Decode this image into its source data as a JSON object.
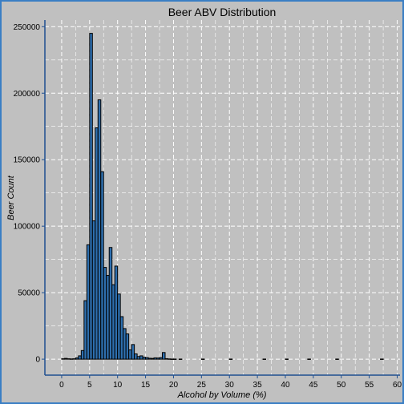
{
  "chart_data": {
    "type": "histogram",
    "title": "Beer ABV Distribution",
    "xlabel": "Alcohol by Volume (%)",
    "ylabel": "Beer Count",
    "xlim": [
      -3,
      60.5
    ],
    "ylim": [
      -12000,
      255000
    ],
    "xticks": [
      0,
      5,
      10,
      15,
      20,
      25,
      30,
      35,
      40,
      45,
      50,
      55,
      60
    ],
    "yticks": [
      0,
      50000,
      100000,
      150000,
      200000,
      250000
    ],
    "ytick_labels": [
      "0",
      "50000",
      "100000",
      "150000",
      "200000",
      "250000"
    ],
    "bin_width": 0.5,
    "bin_start": 0,
    "bins": [
      {
        "x": 0.0,
        "count": 300
      },
      {
        "x": 0.5,
        "count": 600
      },
      {
        "x": 1.0,
        "count": 300
      },
      {
        "x": 1.5,
        "count": 200
      },
      {
        "x": 2.0,
        "count": 300
      },
      {
        "x": 2.5,
        "count": 1000
      },
      {
        "x": 3.0,
        "count": 2500
      },
      {
        "x": 3.5,
        "count": 6500
      },
      {
        "x": 4.0,
        "count": 44000
      },
      {
        "x": 4.5,
        "count": 86000
      },
      {
        "x": 5.0,
        "count": 245000
      },
      {
        "x": 5.5,
        "count": 104000
      },
      {
        "x": 6.0,
        "count": 174000
      },
      {
        "x": 6.5,
        "count": 195000
      },
      {
        "x": 7.0,
        "count": 141000
      },
      {
        "x": 7.5,
        "count": 69000
      },
      {
        "x": 8.0,
        "count": 63000
      },
      {
        "x": 8.5,
        "count": 84000
      },
      {
        "x": 9.0,
        "count": 56000
      },
      {
        "x": 9.5,
        "count": 70000
      },
      {
        "x": 10.0,
        "count": 49000
      },
      {
        "x": 10.5,
        "count": 32000
      },
      {
        "x": 11.0,
        "count": 23000
      },
      {
        "x": 11.5,
        "count": 19000
      },
      {
        "x": 12.0,
        "count": 7000
      },
      {
        "x": 12.5,
        "count": 11000
      },
      {
        "x": 13.0,
        "count": 4000
      },
      {
        "x": 13.5,
        "count": 2000
      },
      {
        "x": 14.0,
        "count": 2500
      },
      {
        "x": 14.5,
        "count": 1500
      },
      {
        "x": 15.0,
        "count": 1200
      },
      {
        "x": 15.5,
        "count": 700
      },
      {
        "x": 16.0,
        "count": 600
      },
      {
        "x": 16.5,
        "count": 1000
      },
      {
        "x": 17.0,
        "count": 900
      },
      {
        "x": 17.5,
        "count": 1200
      },
      {
        "x": 18.0,
        "count": 5000
      },
      {
        "x": 18.5,
        "count": 400
      },
      {
        "x": 19.0,
        "count": 200
      },
      {
        "x": 19.5,
        "count": 100
      },
      {
        "x": 20.0,
        "count": 100
      },
      {
        "x": 21.0,
        "count": 100
      },
      {
        "x": 25.0,
        "count": 100
      },
      {
        "x": 30.0,
        "count": 100
      },
      {
        "x": 36.0,
        "count": 100
      },
      {
        "x": 40.0,
        "count": 100
      },
      {
        "x": 44.0,
        "count": 100
      },
      {
        "x": 49.0,
        "count": 100
      },
      {
        "x": 57.0,
        "count": 100
      }
    ],
    "grid": true,
    "colors": {
      "bar_fill": "#2e6fae",
      "bar_stroke": "#000000",
      "panel_bg": "#c0c0c0",
      "grid": "#ffffff",
      "axis_line": "#1f4f8f",
      "frame_border": "#3a7ec4"
    }
  }
}
